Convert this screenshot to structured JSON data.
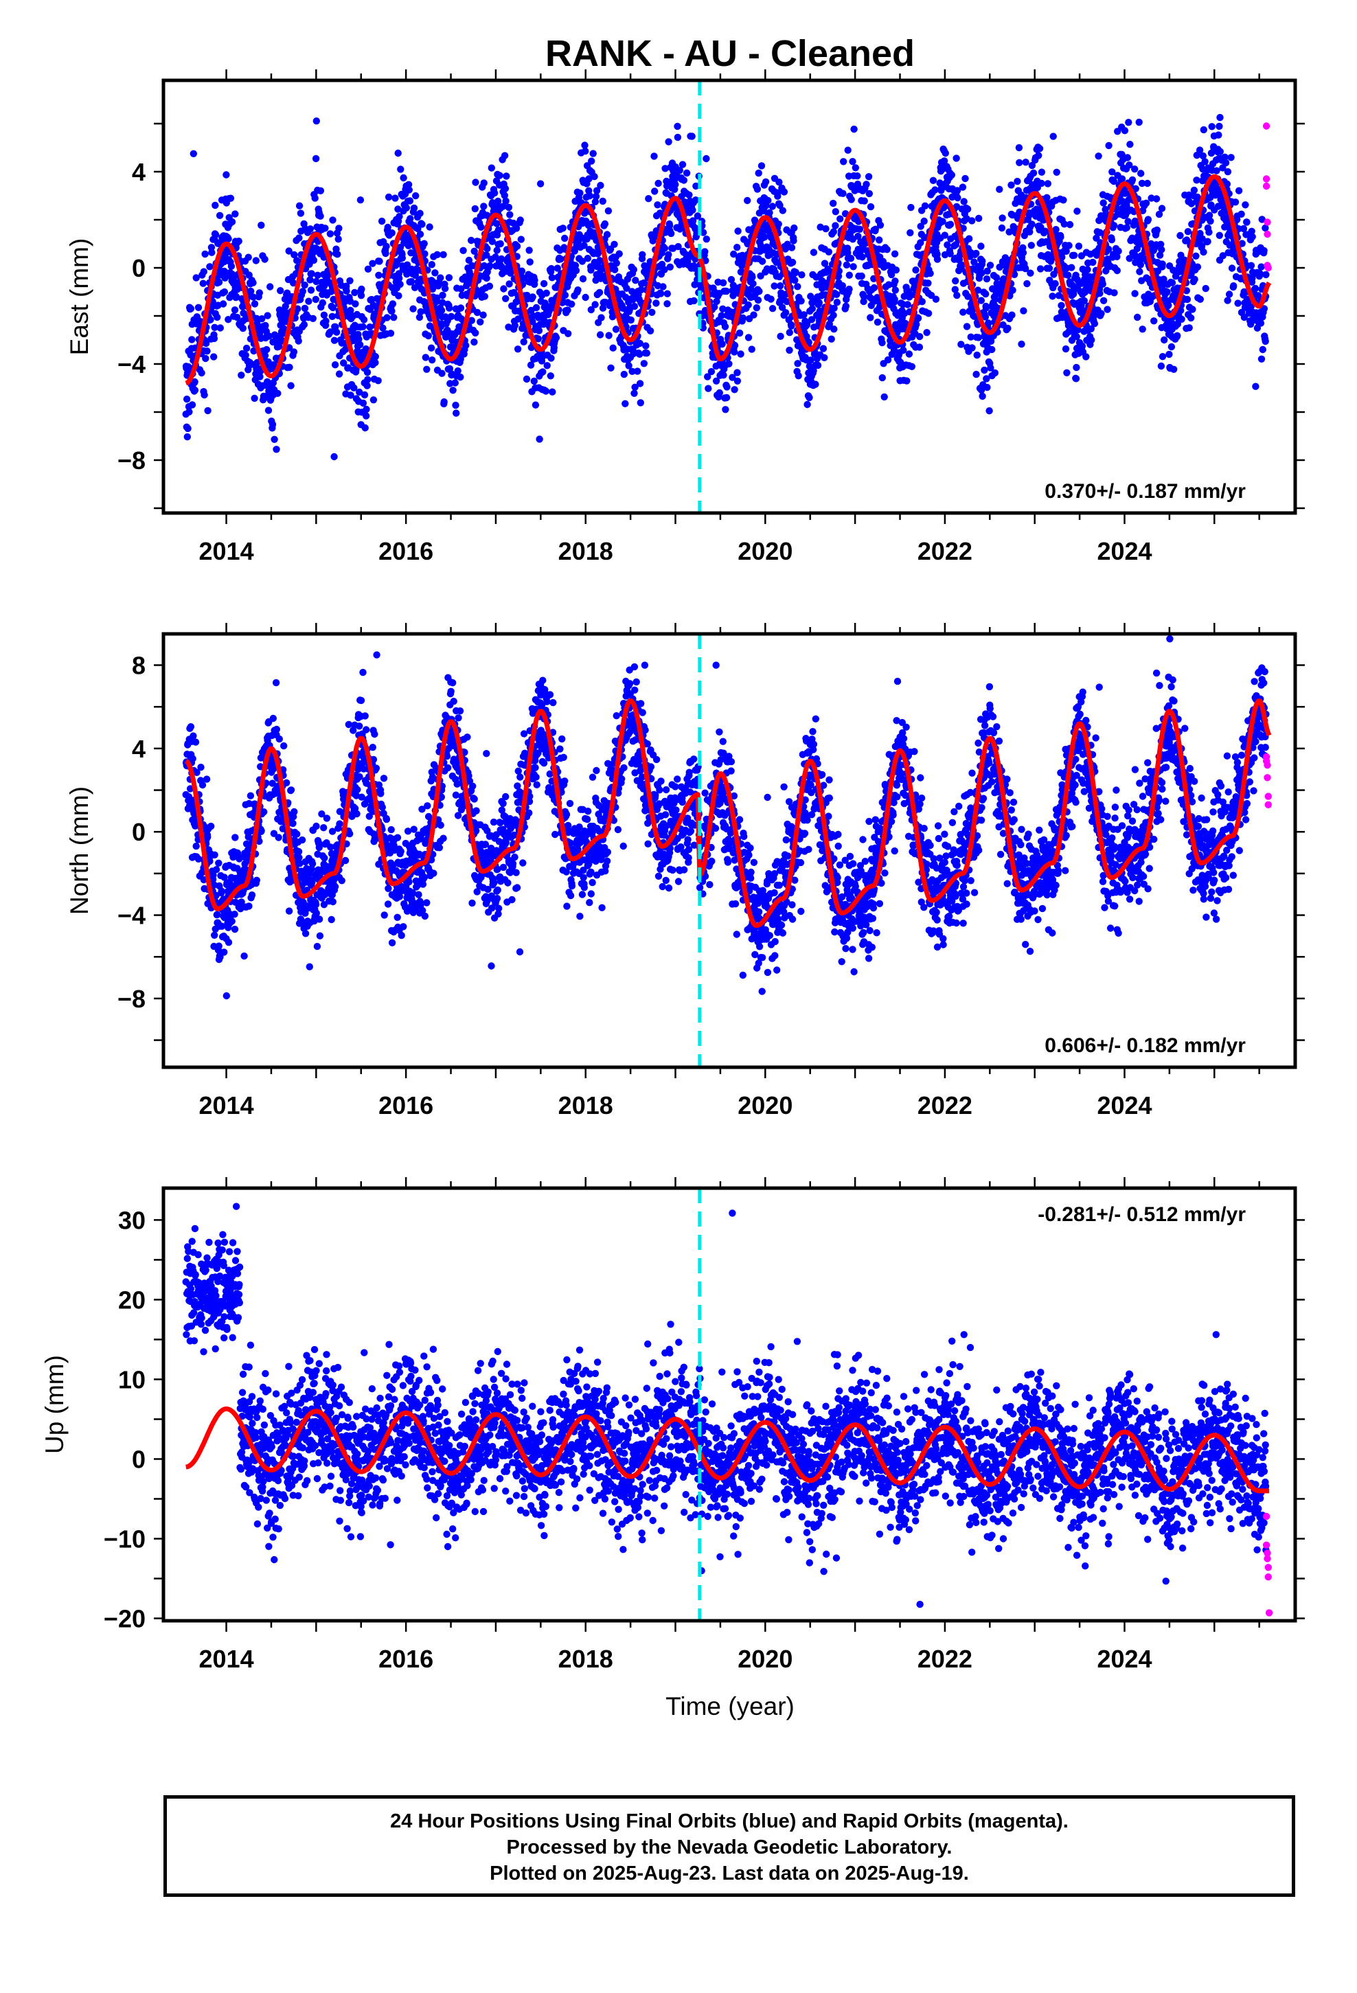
{
  "chart_data": [
    {
      "type": "scatter",
      "title": "RANK  - AU - Cleaned",
      "ylabel": "East (mm)",
      "xlabel": "",
      "xlim": [
        2013.3,
        2025.9
      ],
      "ylim": [
        -10.2,
        7.8
      ],
      "xticks": [
        2014,
        2016,
        2018,
        2020,
        2022,
        2024
      ],
      "yticks": [
        -8,
        -4,
        0,
        4
      ],
      "rate_text": "0.370+/- 0.187 mm/yr",
      "rate_position": "bottom-right",
      "equipment_change": 2019.27,
      "grid": false,
      "model": {
        "x": [
          2013.55,
          2014.0,
          2014.5,
          2015.0,
          2015.5,
          2016.0,
          2016.5,
          2017.0,
          2017.5,
          2018.0,
          2018.5,
          2019.0,
          2019.25,
          2019.5,
          2020.0,
          2020.5,
          2021.0,
          2021.5,
          2022.0,
          2022.5,
          2023.0,
          2023.5,
          2024.0,
          2024.5,
          2025.0,
          2025.5,
          2025.62
        ],
        "y": [
          -4.8,
          1.0,
          -4.5,
          1.4,
          -4.1,
          1.7,
          -3.8,
          2.2,
          -3.4,
          2.6,
          -3.0,
          2.9,
          0.5,
          -3.8,
          2.1,
          -3.4,
          2.4,
          -3.1,
          2.8,
          -2.7,
          3.1,
          -2.4,
          3.5,
          -2.0,
          3.8,
          -1.6,
          -0.6
        ]
      },
      "series": [
        {
          "name": "Final Orbits",
          "color": "#0000ff",
          "amp": 3.3,
          "trend": 0.37,
          "offset": -0.9,
          "noise": 1.35,
          "seed": 11
        },
        {
          "name": "Rapid Orbits",
          "color": "#ff00ff",
          "x": [
            2025.58,
            2025.58,
            2025.58,
            2025.59,
            2025.59,
            2025.59,
            2025.6
          ],
          "y": [
            5.9,
            3.7,
            3.4,
            1.9,
            1.4,
            0.1,
            0.0
          ]
        }
      ]
    },
    {
      "type": "scatter",
      "title": "",
      "ylabel": "North (mm)",
      "xlabel": "",
      "xlim": [
        2013.3,
        2025.9
      ],
      "ylim": [
        -11.3,
        9.5
      ],
      "xticks": [
        2014,
        2016,
        2018,
        2020,
        2022,
        2024
      ],
      "yticks": [
        -8,
        -4,
        0,
        4,
        8
      ],
      "rate_text": "0.606+/- 0.182 mm/yr",
      "rate_position": "bottom-right",
      "equipment_change": 2019.27,
      "grid": false,
      "model": {
        "x": [
          2013.55,
          2013.9,
          2014.2,
          2014.5,
          2014.85,
          2015.2,
          2015.5,
          2015.85,
          2016.2,
          2016.5,
          2016.85,
          2017.2,
          2017.5,
          2017.85,
          2018.2,
          2018.5,
          2018.85,
          2019.26,
          2019.27,
          2019.5,
          2019.9,
          2020.2,
          2020.5,
          2020.85,
          2021.2,
          2021.5,
          2021.85,
          2022.2,
          2022.5,
          2022.85,
          2023.2,
          2023.5,
          2023.85,
          2024.2,
          2024.5,
          2024.85,
          2025.2,
          2025.5,
          2025.62
        ],
        "y": [
          3.4,
          -3.7,
          -2.6,
          4.0,
          -3.1,
          -2.0,
          4.5,
          -2.5,
          -1.5,
          5.3,
          -1.9,
          -0.8,
          5.8,
          -1.3,
          -0.2,
          6.3,
          -0.7,
          1.8,
          -2.1,
          2.8,
          -4.5,
          -3.2,
          3.4,
          -3.9,
          -2.6,
          3.9,
          -3.3,
          -2.0,
          4.5,
          -2.8,
          -1.5,
          5.2,
          -2.2,
          -0.8,
          5.8,
          -1.5,
          -0.2,
          6.3,
          4.6
        ]
      },
      "series": [
        {
          "name": "Final Orbits",
          "color": "#0000ff",
          "amp": 4.5,
          "trend": 0.606,
          "offset": 0.3,
          "noise": 1.25,
          "seed": 23
        },
        {
          "name": "Rapid Orbits",
          "color": "#ff00ff",
          "x": [
            2025.58,
            2025.58,
            2025.59,
            2025.59,
            2025.6,
            2025.6
          ],
          "y": [
            3.6,
            3.4,
            3.2,
            2.6,
            1.7,
            1.3
          ]
        }
      ]
    },
    {
      "type": "scatter",
      "title": "",
      "ylabel": "Up (mm)",
      "xlabel": "Time (year)",
      "xlim": [
        2013.3,
        2025.9
      ],
      "ylim": [
        -20.3,
        34.0
      ],
      "xticks": [
        2014,
        2016,
        2018,
        2020,
        2022,
        2024
      ],
      "yticks": [
        -20,
        -10,
        0,
        10,
        20,
        30
      ],
      "rate_text": "-0.281+/- 0.512 mm/yr",
      "rate_position": "top-right",
      "equipment_change": 2019.27,
      "grid": false,
      "model": {
        "x": [
          2013.55,
          2014.0,
          2014.5,
          2015.0,
          2015.5,
          2016.0,
          2016.5,
          2017.0,
          2017.5,
          2018.0,
          2018.5,
          2019.0,
          2019.5,
          2020.0,
          2020.5,
          2021.0,
          2021.5,
          2022.0,
          2022.5,
          2023.0,
          2023.5,
          2024.0,
          2024.5,
          2025.0,
          2025.5,
          2025.62
        ],
        "y": [
          -1.0,
          6.3,
          -1.4,
          6.0,
          -1.6,
          5.8,
          -1.8,
          5.6,
          -2.0,
          5.3,
          -2.2,
          5.0,
          -2.4,
          4.6,
          -2.7,
          4.3,
          -3.0,
          4.0,
          -3.2,
          3.8,
          -3.5,
          3.4,
          -3.8,
          3.0,
          -4.0,
          -4.0
        ]
      },
      "series": [
        {
          "name": "Final Orbits",
          "color": "#0000ff",
          "amp": 3.5,
          "trend": -0.281,
          "offset": 1.2,
          "noise": 4.0,
          "seed": 37,
          "early_cluster": {
            "x0": 2013.55,
            "x1": 2014.15,
            "center": 20.5,
            "spread": 3.2
          }
        },
        {
          "name": "Rapid Orbits",
          "color": "#ff00ff",
          "x": [
            2025.58,
            2025.58,
            2025.59,
            2025.59,
            2025.6,
            2025.6,
            2025.61
          ],
          "y": [
            -7.2,
            -10.8,
            -11.8,
            -12.5,
            -13.6,
            -14.8,
            -19.3
          ]
        }
      ]
    }
  ],
  "footer": {
    "line1": "24 Hour Positions Using Final Orbits (blue) and Rapid Orbits (magenta).",
    "line2": "Processed by the Nevada Geodetic Laboratory.",
    "line3": "Plotted on 2025-Aug-23. Last data on 2025-Aug-19."
  }
}
